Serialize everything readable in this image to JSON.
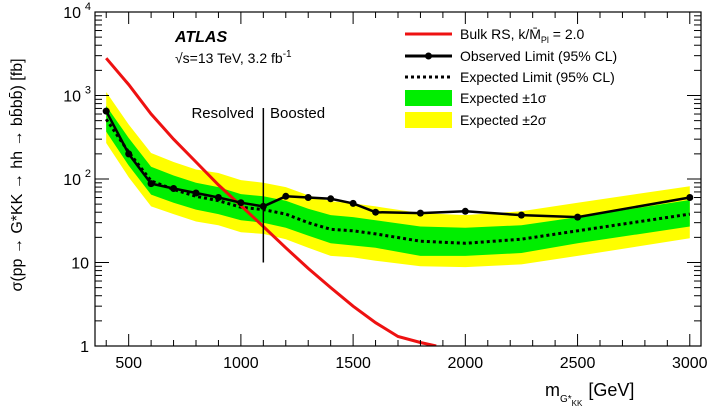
{
  "chart_data": {
    "type": "line",
    "experiment": "ATLAS",
    "energy_label": "√s=13 TeV, 3.2 fb",
    "lumi_exponent": "-1",
    "xlabel": "m",
    "xlabel_sub1": "G*",
    "xlabel_sub2": "KK",
    "xlabel_unit": "[GeV]",
    "ylabel": "σ(pp → G*KK → hh → bb̄bb̄) [fb]",
    "xlim": [
      350,
      3050
    ],
    "ylim": [
      1,
      10000
    ],
    "yscale": "log",
    "x_ticks": [
      500,
      1000,
      1500,
      2000,
      2500,
      3000
    ],
    "y_tick_labels": [
      {
        "value": 1,
        "label": "1"
      },
      {
        "value": 10,
        "label": "10"
      },
      {
        "value": 100,
        "label": "10",
        "exp": "2"
      },
      {
        "value": 1000,
        "label": "10",
        "exp": "3"
      },
      {
        "value": 10000,
        "label": "10",
        "exp": "4"
      }
    ],
    "region_divider_x": 1100,
    "region_labels": {
      "left": "Resolved",
      "right": "Boosted"
    },
    "legend": [
      {
        "key": "theory",
        "label": "Bulk RS, k/M̄",
        "sub": "Pl",
        "suffix": " = 2.0",
        "color": "#ee1111"
      },
      {
        "key": "observed",
        "label": "Observed Limit (95% CL)",
        "color": "#000000"
      },
      {
        "key": "expected",
        "label": "Expected Limit (95% CL)",
        "color": "#000000"
      },
      {
        "key": "band1",
        "label": "Expected ±1σ",
        "color": "#00ee00"
      },
      {
        "key": "band2",
        "label": "Expected ±2σ",
        "color": "#ffff00"
      }
    ],
    "series": {
      "observed": {
        "x": [
          400,
          500,
          600,
          700,
          800,
          900,
          1000,
          1100,
          1200,
          1300,
          1400,
          1500,
          1600,
          1800,
          2000,
          2250,
          2500,
          3000
        ],
        "y": [
          650,
          200,
          88,
          77,
          68,
          60,
          52,
          47,
          62,
          60,
          58,
          51,
          40,
          39,
          41,
          37,
          35,
          60
        ]
      },
      "expected": {
        "x": [
          400,
          500,
          600,
          700,
          800,
          900,
          1000,
          1100,
          1200,
          1300,
          1400,
          1500,
          1600,
          1800,
          2000,
          2250,
          2500,
          3000
        ],
        "y": [
          520,
          210,
          95,
          75,
          62,
          55,
          46,
          43,
          38,
          30,
          25,
          24,
          22,
          18,
          17,
          19,
          24,
          38
        ]
      },
      "band1_upper": {
        "x": [
          400,
          500,
          600,
          700,
          800,
          900,
          1000,
          1100,
          1200,
          1300,
          1400,
          1500,
          1600,
          1800,
          2000,
          2250,
          2500,
          3000
        ],
        "y": [
          750,
          310,
          140,
          110,
          90,
          80,
          66,
          62,
          55,
          44,
          37,
          35,
          32,
          27,
          26,
          28,
          35,
          56
        ]
      },
      "band1_lower": {
        "x": [
          400,
          500,
          600,
          700,
          800,
          900,
          1000,
          1100,
          1200,
          1300,
          1400,
          1500,
          1600,
          1800,
          2000,
          2250,
          2500,
          3000
        ],
        "y": [
          370,
          145,
          65,
          52,
          43,
          38,
          32,
          30,
          26,
          21,
          17,
          16,
          15,
          12,
          12,
          13,
          17,
          27
        ]
      },
      "band2_upper": {
        "x": [
          400,
          500,
          600,
          700,
          800,
          900,
          1000,
          1100,
          1200,
          1300,
          1400,
          1500,
          1600,
          1800,
          2000,
          2250,
          2500,
          3000
        ],
        "y": [
          1100,
          450,
          205,
          160,
          130,
          118,
          97,
          90,
          80,
          64,
          54,
          51,
          47,
          39,
          37,
          41,
          52,
          82
        ]
      },
      "band2_lower": {
        "x": [
          400,
          500,
          600,
          700,
          800,
          900,
          1000,
          1100,
          1200,
          1300,
          1400,
          1500,
          1600,
          1800,
          2000,
          2250,
          2500,
          3000
        ],
        "y": [
          270,
          105,
          47,
          38,
          31,
          28,
          23,
          22,
          19,
          15,
          12,
          11.5,
          10.5,
          9,
          8.8,
          9.5,
          12,
          19.5
        ]
      },
      "theory": {
        "x": [
          400,
          500,
          600,
          700,
          800,
          900,
          1000,
          1100,
          1200,
          1300,
          1400,
          1500,
          1600,
          1700,
          1800,
          1870
        ],
        "y": [
          2800,
          1350,
          600,
          300,
          160,
          85,
          48,
          27,
          15,
          8.5,
          5,
          3,
          1.9,
          1.3,
          1.1,
          1.0
        ]
      }
    }
  }
}
